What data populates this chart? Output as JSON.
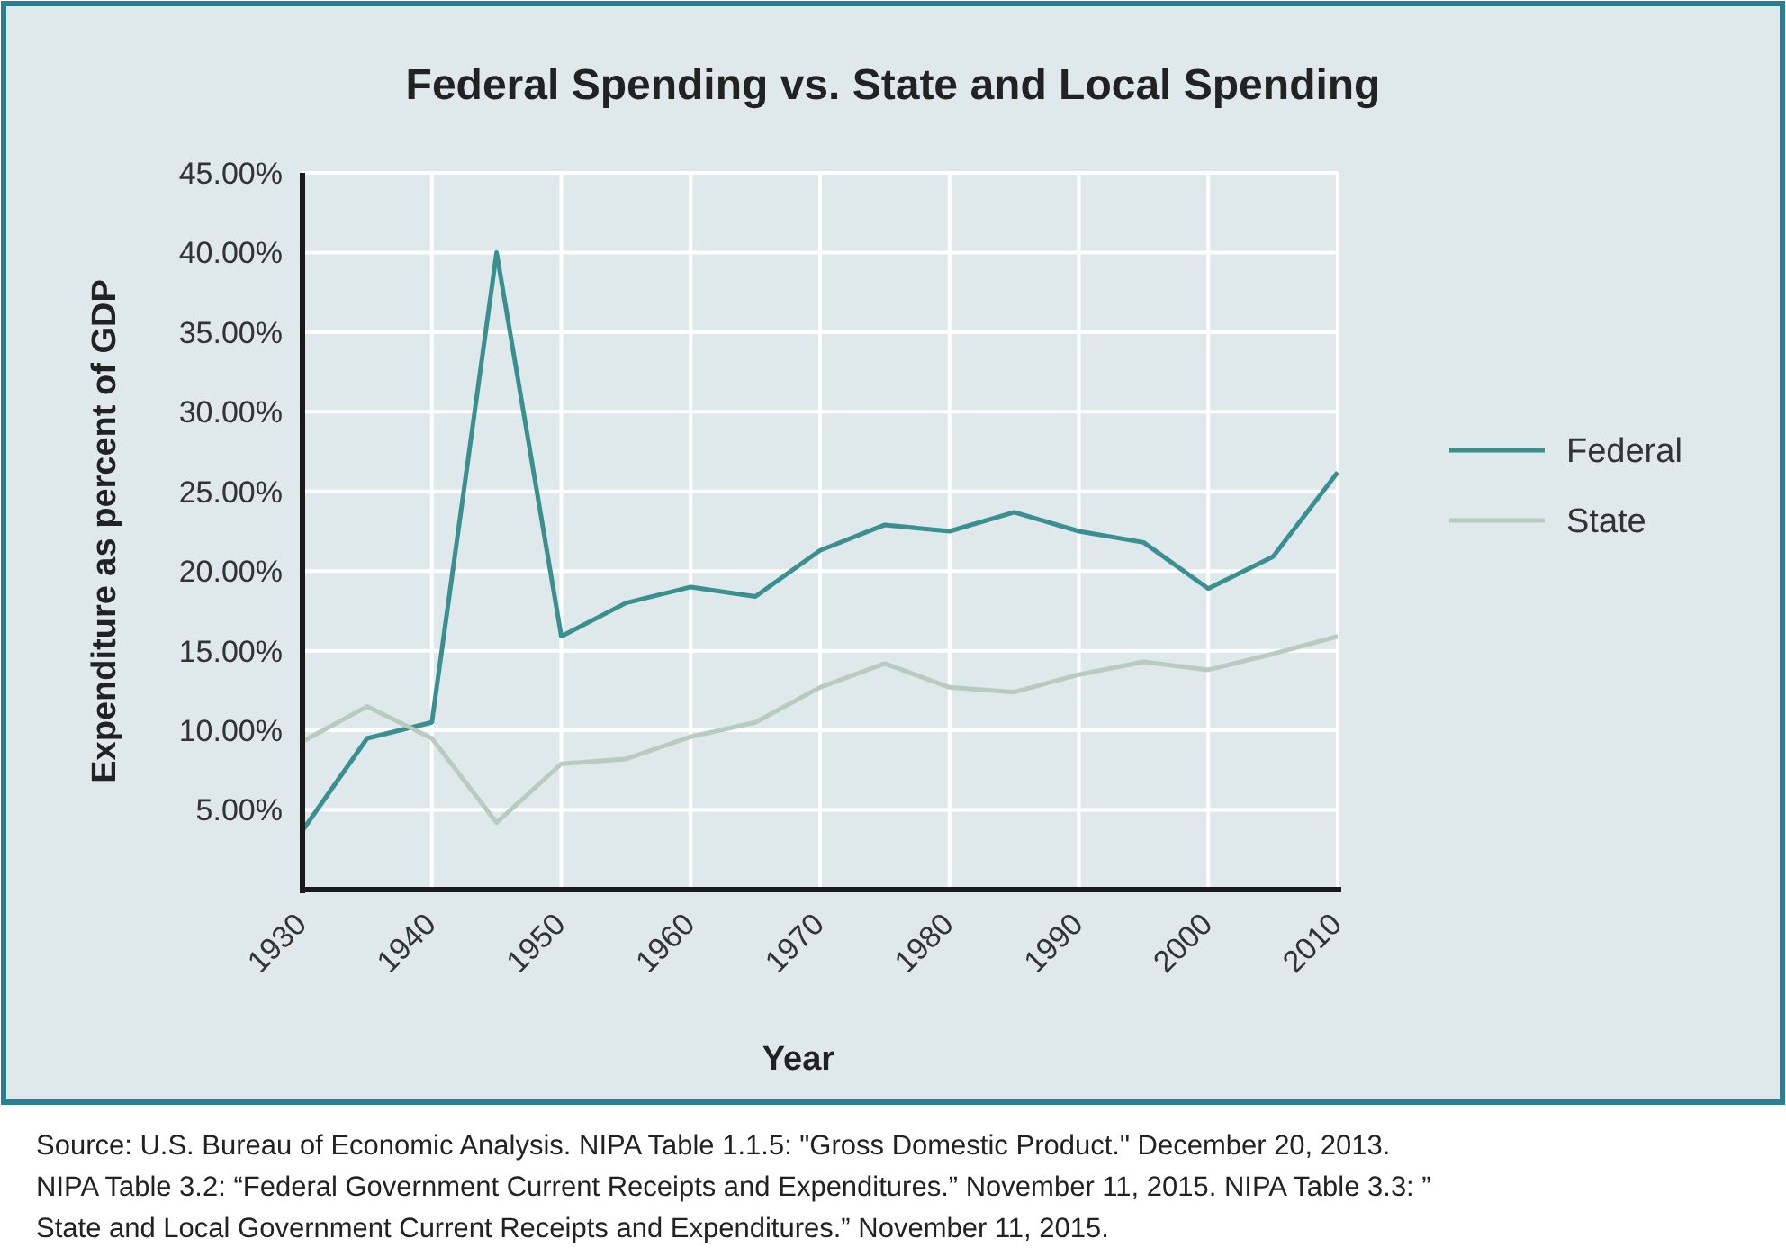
{
  "chart_data": {
    "type": "line",
    "title": "Federal Spending vs. State and Local Spending",
    "xlabel": "Year",
    "ylabel": "Expenditure as percent of GDP",
    "x": [
      1930,
      1935,
      1940,
      1945,
      1950,
      1955,
      1960,
      1965,
      1970,
      1975,
      1980,
      1985,
      1990,
      1995,
      2000,
      2005,
      2010
    ],
    "series": [
      {
        "name": "Federal",
        "color": "#3a8f91",
        "values": [
          3.7,
          9.5,
          10.5,
          40.0,
          15.9,
          18.0,
          19.0,
          18.4,
          21.3,
          22.9,
          22.5,
          23.7,
          22.5,
          21.8,
          18.9,
          20.9,
          26.2
        ]
      },
      {
        "name": "State",
        "color": "#b8cbbf",
        "values": [
          9.3,
          11.5,
          9.5,
          4.2,
          7.9,
          8.2,
          9.6,
          10.5,
          12.7,
          14.2,
          12.7,
          12.4,
          13.5,
          14.3,
          13.8,
          14.8,
          15.9
        ]
      }
    ],
    "xlim": [
      1930,
      2010
    ],
    "xticks": [
      1930,
      1940,
      1950,
      1960,
      1970,
      1980,
      1990,
      2000,
      2010
    ],
    "ylim": [
      0,
      45
    ],
    "yticks": [
      {
        "value": 5,
        "label": "5.00%"
      },
      {
        "value": 10,
        "label": "10.00%"
      },
      {
        "value": 15,
        "label": "15.00%"
      },
      {
        "value": 20,
        "label": "20.00%"
      },
      {
        "value": 25,
        "label": "25.00%"
      },
      {
        "value": 30,
        "label": "30.00%"
      },
      {
        "value": 35,
        "label": "35.00%"
      },
      {
        "value": 40,
        "label": "40.00%"
      },
      {
        "value": 45,
        "label": "45.00%"
      }
    ],
    "grid": true,
    "legend": "right",
    "marker": "none",
    "line_style": "solid",
    "annotations": [
      "Source: U.S. Bureau of Economic Analysis. NIPA Table 1.1.5: \"Gross Domestic Product.\" December 20, 2013.",
      "NIPA Table 3.2: “Federal Government Current Receipts and Expenditures.” November 11, 2015. NIPA Table 3.3: ”",
      "State and Local Government Current Receipts and Expenditures.” November 11, 2015."
    ]
  }
}
